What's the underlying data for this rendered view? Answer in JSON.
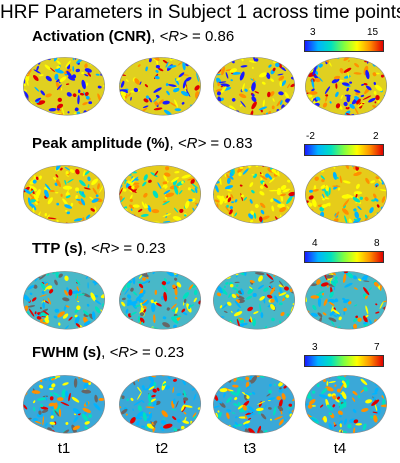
{
  "title": "HRF Parameters in Subject 1 across time points",
  "timepoints": [
    "t1",
    "t2",
    "t3",
    "t4"
  ],
  "rows": [
    {
      "label_bold": "Activation (CNR)",
      "label_r": "<R>",
      "label_eq": " = 0.86",
      "cbar_min": "3",
      "cbar_max": "15",
      "dominant": "#e0d020"
    },
    {
      "label_bold": "Peak amplitude (%)",
      "label_r": "<R>",
      "label_eq": " = 0.83",
      "cbar_min": "-2",
      "cbar_max": "2",
      "dominant": "#e6cc1a"
    },
    {
      "label_bold": "TTP (s)",
      "label_r": "<R>",
      "label_eq": " = 0.23",
      "cbar_min": "4",
      "cbar_max": "8",
      "dominant": "#48b8c8"
    },
    {
      "label_bold": "FWHM (s)",
      "label_r": "<R>",
      "label_eq": " = 0.23",
      "cbar_min": "3",
      "cbar_max": "7",
      "dominant": "#3aa8d8"
    }
  ],
  "colormap": [
    "#1a1aff",
    "#00b4ff",
    "#00e0c0",
    "#80ff40",
    "#ffff00",
    "#ff9000",
    "#e00000"
  ]
}
